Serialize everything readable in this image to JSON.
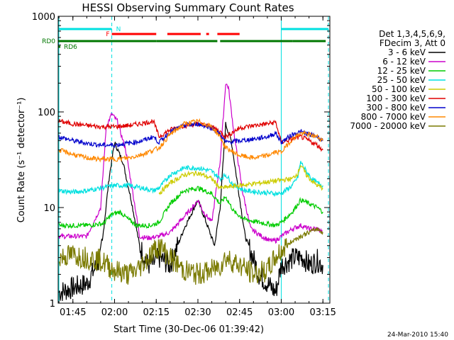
{
  "chart_data": {
    "type": "line",
    "title": "HESSI Observing Summary Count Rates",
    "xlabel": "Start Time (30-Dec-06 01:39:42)",
    "ylabel": "Count Rate (s⁻¹ detector⁻¹)",
    "yscale": "log",
    "ylim": [
      1,
      1000
    ],
    "xlim": [
      "01:39:42",
      "03:17:30"
    ],
    "x_ticks": [
      "01:45",
      "02:00",
      "02:15",
      "02:30",
      "02:45",
      "03:00",
      "03:15"
    ],
    "y_ticks": [
      "1",
      "10",
      "100",
      "1000"
    ],
    "legend_position": "right",
    "legend_header": [
      "Det 1,3,4,5,6,9,",
      "FDecim 3, Att 0"
    ],
    "series": [
      {
        "name": "3 - 6 keV",
        "color": "#000000",
        "points": [
          [
            "01:40",
            1.3
          ],
          [
            "01:50",
            1.6
          ],
          [
            "01:55",
            3
          ],
          [
            "01:58",
            20
          ],
          [
            "02:00",
            48
          ],
          [
            "02:03",
            30
          ],
          [
            "02:06",
            12
          ],
          [
            "02:09",
            4
          ],
          [
            "02:12",
            2.5
          ],
          [
            "02:14",
            2.6
          ],
          [
            "02:16",
            3
          ],
          [
            "02:20",
            2.5
          ],
          [
            "02:25",
            6
          ],
          [
            "02:30",
            12
          ],
          [
            "02:33",
            7
          ],
          [
            "02:36",
            4
          ],
          [
            "02:38",
            10
          ],
          [
            "02:40",
            75
          ],
          [
            "02:42",
            50
          ],
          [
            "02:44",
            20
          ],
          [
            "02:47",
            5
          ],
          [
            "02:52",
            2
          ],
          [
            "02:56",
            1.5
          ],
          [
            "02:58",
            1.3
          ],
          [
            "03:00",
            2.5
          ],
          [
            "03:05",
            3
          ],
          [
            "03:08",
            3
          ],
          [
            "03:10",
            2.5
          ],
          [
            "03:13",
            2.8
          ],
          [
            "03:15",
            2.5
          ]
        ]
      },
      {
        "name": "6 - 12 keV",
        "color": "#cc00cc",
        "points": [
          [
            "01:40",
            5
          ],
          [
            "01:50",
            5
          ],
          [
            "01:55",
            10
          ],
          [
            "01:57",
            70
          ],
          [
            "01:59",
            95
          ],
          [
            "02:01",
            80
          ],
          [
            "02:04",
            40
          ],
          [
            "02:07",
            12
          ],
          [
            "02:09",
            5
          ],
          [
            "02:12",
            4.8
          ],
          [
            "02:16",
            5
          ],
          [
            "02:20",
            5.5
          ],
          [
            "02:25",
            8
          ],
          [
            "02:28",
            10
          ],
          [
            "02:30",
            12
          ],
          [
            "02:32",
            9
          ],
          [
            "02:35",
            7
          ],
          [
            "02:38",
            30
          ],
          [
            "02:40",
            200
          ],
          [
            "02:41",
            180
          ],
          [
            "02:43",
            60
          ],
          [
            "02:46",
            15
          ],
          [
            "02:49",
            6
          ],
          [
            "02:53",
            5
          ],
          [
            "02:56",
            4.5
          ],
          [
            "02:58",
            4.5
          ],
          [
            "03:00",
            5
          ],
          [
            "03:04",
            6
          ],
          [
            "03:07",
            6.5
          ],
          [
            "03:10",
            6
          ],
          [
            "03:13",
            6
          ],
          [
            "03:15",
            5.5
          ]
        ]
      },
      {
        "name": "12 - 25 keV",
        "color": "#00cc00",
        "points": [
          [
            "01:40",
            6.5
          ],
          [
            "01:50",
            6.5
          ],
          [
            "01:56",
            6.8
          ],
          [
            "01:59",
            8.5
          ],
          [
            "02:02",
            9
          ],
          [
            "02:05",
            7.5
          ],
          [
            "02:08",
            6.5
          ],
          [
            "02:13",
            6.5
          ],
          [
            "02:16",
            7
          ],
          [
            "02:20",
            11
          ],
          [
            "02:25",
            15
          ],
          [
            "02:30",
            16
          ],
          [
            "02:35",
            14
          ],
          [
            "02:38",
            11
          ],
          [
            "02:40",
            13
          ],
          [
            "02:43",
            9
          ],
          [
            "02:47",
            7.5
          ],
          [
            "02:52",
            7
          ],
          [
            "02:58",
            6.5
          ],
          [
            "03:00",
            7
          ],
          [
            "03:04",
            9
          ],
          [
            "03:07",
            12
          ],
          [
            "03:10",
            11
          ],
          [
            "03:13",
            10
          ],
          [
            "03:15",
            9
          ]
        ]
      },
      {
        "name": "25 - 50 keV",
        "color": "#00e0e0",
        "points": [
          [
            "01:40",
            15
          ],
          [
            "01:45",
            14.5
          ],
          [
            "01:50",
            15
          ],
          [
            "01:55",
            16
          ],
          [
            "02:00",
            17
          ],
          [
            "02:05",
            17
          ],
          [
            "02:10",
            16
          ],
          [
            "02:14",
            15
          ],
          [
            "02:16",
            16
          ],
          [
            "02:20",
            22
          ],
          [
            "02:25",
            26
          ],
          [
            "02:30",
            26
          ],
          [
            "02:35",
            24
          ],
          [
            "02:38",
            20
          ],
          [
            "02:40",
            22
          ],
          [
            "02:43",
            17
          ],
          [
            "02:47",
            15
          ],
          [
            "02:52",
            14.5
          ],
          [
            "02:58",
            14
          ],
          [
            "03:00",
            14
          ],
          [
            "03:04",
            17
          ],
          [
            "03:06",
            21
          ],
          [
            "03:07",
            30
          ],
          [
            "03:09",
            24
          ],
          [
            "03:11",
            20
          ],
          [
            "03:13",
            18
          ],
          [
            "03:15",
            17
          ]
        ]
      },
      {
        "name": "50 - 100 keV",
        "color": "#cccc00",
        "points": [
          [
            "02:16",
            14
          ],
          [
            "02:20",
            18
          ],
          [
            "02:25",
            22
          ],
          [
            "02:30",
            23
          ],
          [
            "02:35",
            20
          ],
          [
            "02:38",
            16
          ],
          [
            "03:04",
            20
          ],
          [
            "03:06",
            23
          ],
          [
            "03:07",
            28
          ],
          [
            "03:09",
            22
          ],
          [
            "03:11",
            19
          ],
          [
            "03:13",
            17
          ],
          [
            "03:15",
            16
          ]
        ]
      },
      {
        "name": "100 - 300 keV",
        "color": "#e00000",
        "points": [
          [
            "01:40",
            80
          ],
          [
            "01:45",
            75
          ],
          [
            "01:50",
            72
          ],
          [
            "01:55",
            70
          ],
          [
            "02:00",
            70
          ],
          [
            "02:05",
            72
          ],
          [
            "02:10",
            76
          ],
          [
            "02:14",
            80
          ],
          [
            "02:16",
            55
          ],
          [
            "02:20",
            65
          ],
          [
            "02:25",
            72
          ],
          [
            "02:30",
            75
          ],
          [
            "02:35",
            70
          ],
          [
            "02:38",
            62
          ],
          [
            "02:40",
            55
          ],
          [
            "02:45",
            68
          ],
          [
            "02:50",
            72
          ],
          [
            "02:55",
            75
          ],
          [
            "02:58",
            78
          ],
          [
            "03:00",
            48
          ],
          [
            "03:04",
            52
          ],
          [
            "03:07",
            55
          ],
          [
            "03:10",
            50
          ],
          [
            "03:13",
            45
          ],
          [
            "03:15",
            40
          ]
        ]
      },
      {
        "name": "300 - 800 keV",
        "color": "#0000cc",
        "points": [
          [
            "01:40",
            55
          ],
          [
            "01:45",
            50
          ],
          [
            "01:50",
            47
          ],
          [
            "01:55",
            45
          ],
          [
            "02:00",
            45
          ],
          [
            "02:05",
            47
          ],
          [
            "02:10",
            50
          ],
          [
            "02:14",
            55
          ],
          [
            "02:16",
            48
          ],
          [
            "02:20",
            62
          ],
          [
            "02:25",
            72
          ],
          [
            "02:30",
            75
          ],
          [
            "02:35",
            68
          ],
          [
            "02:38",
            58
          ],
          [
            "02:40",
            48
          ],
          [
            "02:45",
            50
          ],
          [
            "02:50",
            52
          ],
          [
            "02:55",
            55
          ],
          [
            "02:58",
            60
          ],
          [
            "03:00",
            48
          ],
          [
            "03:04",
            58
          ],
          [
            "03:07",
            62
          ],
          [
            "03:10",
            58
          ],
          [
            "03:13",
            55
          ],
          [
            "03:15",
            50
          ]
        ]
      },
      {
        "name": "800 - 7000 keV",
        "color": "#ff8800",
        "points": [
          [
            "01:40",
            40
          ],
          [
            "01:45",
            36
          ],
          [
            "01:50",
            33
          ],
          [
            "01:55",
            32
          ],
          [
            "02:00",
            32
          ],
          [
            "02:05",
            33
          ],
          [
            "02:10",
            36
          ],
          [
            "02:14",
            40
          ],
          [
            "02:16",
            42
          ],
          [
            "02:20",
            58
          ],
          [
            "02:25",
            75
          ],
          [
            "02:30",
            80
          ],
          [
            "02:35",
            70
          ],
          [
            "02:38",
            55
          ],
          [
            "02:40",
            42
          ],
          [
            "02:45",
            35
          ],
          [
            "02:50",
            33
          ],
          [
            "02:55",
            35
          ],
          [
            "02:58",
            38
          ],
          [
            "03:00",
            38
          ],
          [
            "03:04",
            52
          ],
          [
            "03:07",
            60
          ],
          [
            "03:10",
            58
          ],
          [
            "03:13",
            55
          ],
          [
            "03:15",
            50
          ]
        ]
      },
      {
        "name": "7000 - 20000 keV",
        "color": "#7a7a00",
        "points": [
          [
            "01:40",
            3
          ],
          [
            "01:45",
            3.2
          ],
          [
            "01:50",
            3
          ],
          [
            "01:55",
            2.8
          ],
          [
            "02:00",
            2.2
          ],
          [
            "02:05",
            2
          ],
          [
            "02:08",
            2.2
          ],
          [
            "02:12",
            3
          ],
          [
            "02:14",
            3.5
          ],
          [
            "02:16",
            4
          ],
          [
            "02:20",
            3
          ],
          [
            "02:25",
            2.2
          ],
          [
            "02:30",
            2
          ],
          [
            "02:35",
            2.2
          ],
          [
            "02:38",
            2.5
          ],
          [
            "02:40",
            3
          ],
          [
            "02:45",
            2.5
          ],
          [
            "02:50",
            2
          ],
          [
            "02:55",
            2.2
          ],
          [
            "02:58",
            3
          ],
          [
            "03:00",
            3.5
          ],
          [
            "03:04",
            4.5
          ],
          [
            "03:07",
            5
          ],
          [
            "03:10",
            5.5
          ],
          [
            "03:13",
            6
          ],
          [
            "03:15",
            5.5
          ]
        ]
      }
    ],
    "flags": [
      {
        "label": "N",
        "color": "#00e0e0",
        "segments": [
          [
            "01:39:42",
            "01:59"
          ],
          [
            "03:00",
            "03:17"
          ]
        ]
      },
      {
        "label": "F",
        "color": "#ff0000",
        "segments": [
          [
            "01:59",
            "02:15"
          ],
          [
            "02:19",
            "02:31"
          ],
          [
            "02:33",
            "02:34"
          ],
          [
            "02:37",
            "02:45"
          ]
        ]
      },
      {
        "label": "RD0",
        "color": "#007700",
        "segments": [
          [
            "01:39:42",
            "02:15"
          ],
          [
            "02:15",
            "02:37"
          ],
          [
            "02:38",
            "03:04"
          ],
          [
            "03:04",
            "03:16"
          ]
        ]
      },
      {
        "label": "RD6",
        "color": "#007700",
        "segments": [
          [
            "01:39:42",
            "01:40:30"
          ]
        ]
      }
    ],
    "annotations": [
      "24-Mar-2010 15:40"
    ]
  }
}
